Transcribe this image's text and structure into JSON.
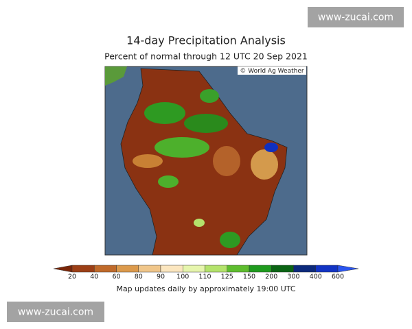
{
  "header": {
    "title": "14-day Precipitation Analysis",
    "subtitle": "Percent of normal through 12 UTC 20 Sep 2021"
  },
  "map": {
    "credit": "© World Ag Weather"
  },
  "legend": {
    "ticks": [
      20,
      40,
      60,
      80,
      90,
      100,
      110,
      125,
      150,
      200,
      300,
      400,
      600
    ],
    "colors": [
      "#7a2608",
      "#9c3f16",
      "#c06a2a",
      "#dc9a4c",
      "#f0c68a",
      "#fbe6bf",
      "#e6f5ad",
      "#b4e36c",
      "#5ebd2e",
      "#1f9b1e",
      "#0b6414",
      "#0c2a7c",
      "#1234c4",
      "#2a55f0"
    ]
  },
  "footer": "Map updates daily by approximately 19:00 UTC",
  "watermarks": [
    "www-zucai.com",
    "www-zucai.com"
  ]
}
